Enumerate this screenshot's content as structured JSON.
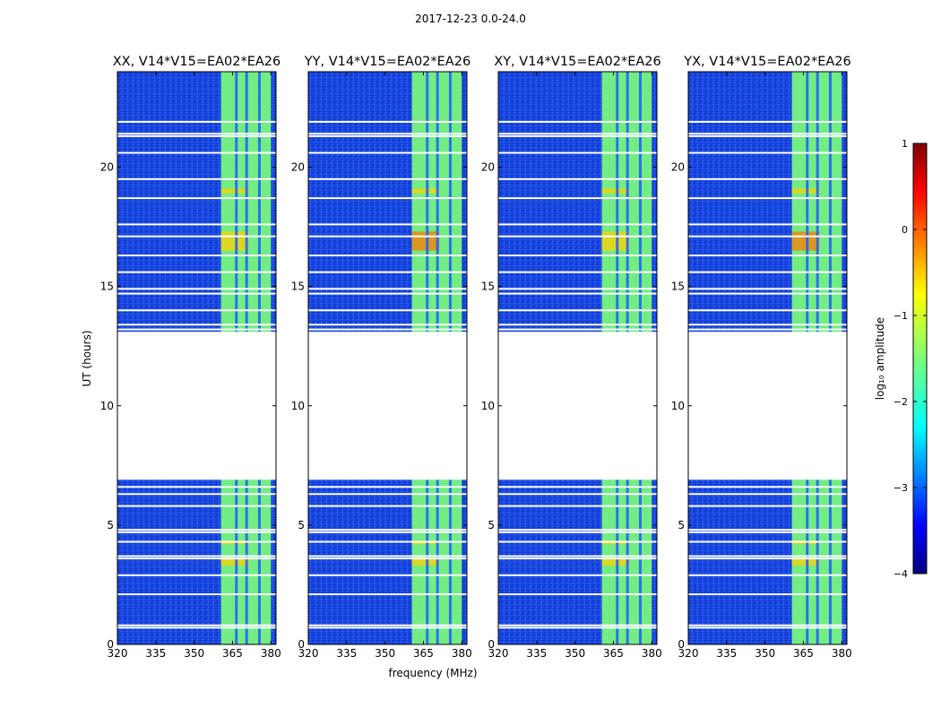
{
  "suptitle": "2017-12-23 0.0-24.0",
  "chart_data": {
    "type": "heatmap",
    "panels": [
      {
        "title": "XX, V14*V15=EA02*EA26"
      },
      {
        "title": "YY, V14*V15=EA02*EA26"
      },
      {
        "title": "XY, V14*V15=EA02*EA26"
      },
      {
        "title": "YX, V14*V15=EA02*EA26"
      }
    ],
    "xlabel": "frequency (MHz)",
    "ylabel": "UT (hours)",
    "xlim": [
      320,
      382
    ],
    "ylim": [
      0,
      24
    ],
    "xticks": [
      320,
      335,
      350,
      365,
      380
    ],
    "yticks": [
      0,
      5,
      10,
      15,
      20
    ],
    "data_gap_hours": [
      6.9,
      13.1
    ],
    "rfi_band_mhz": [
      360.5,
      380
    ],
    "rfi_channel_gaps_mhz": [
      366.5,
      370.5,
      375.5
    ],
    "flagged_rows_hours": [
      0.7,
      0.8,
      2.1,
      2.9,
      3.6,
      3.7,
      4.3,
      4.7,
      4.8,
      5.8,
      6.3,
      6.6,
      13.2,
      13.4,
      14.0,
      14.7,
      14.9,
      15.6,
      16.3,
      17.1,
      17.6,
      18.7,
      19.5,
      20.6,
      21.3,
      21.4,
      21.9
    ],
    "colorbar": {
      "label": "log₁₀ amplitude",
      "ticks": [
        1,
        0,
        -1,
        -2,
        -3,
        -4
      ],
      "tick_labels": [
        "1",
        "0",
        "−1",
        "−2",
        "−3",
        "−4"
      ],
      "range": [
        -4,
        1
      ],
      "colormap": "jet"
    }
  },
  "colors": {
    "background_low": "#0a32b4",
    "background_mid": "#1e5aff",
    "band_high": "#7cff7a",
    "band_peak": "#ffd000",
    "band_hot": "#ff7a00",
    "flag": "#ffffff"
  }
}
